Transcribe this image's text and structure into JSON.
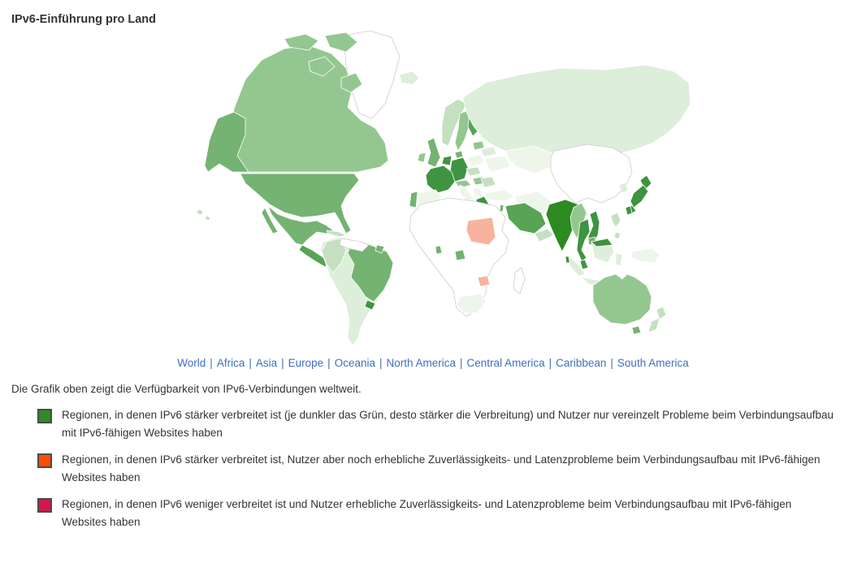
{
  "page": {
    "title": "IPv6-Einführung pro Land",
    "intro": "Die Grafik oben zeigt die Verfügbarkeit von IPv6-Verbindungen weltweit."
  },
  "nav": {
    "separator": "|",
    "link_color": "#3e6fc0",
    "links": [
      "World",
      "Africa",
      "Asia",
      "Europe",
      "Oceania",
      "North America",
      "Central America",
      "Caribbean",
      "South America"
    ]
  },
  "legend": {
    "swatch_border": "#4a4a4a",
    "items": [
      {
        "color": "#2e8b22",
        "text": "Regionen, in denen IPv6 stärker verbreitet ist (je dunkler das Grün, desto stärker die Verbreitung) und Nutzer nur vereinzelt Probleme beim Verbindungsaufbau mit IPv6-fähigen Websites haben"
      },
      {
        "color": "#ff4e02",
        "text": "Regionen, in denen IPv6 stärker verbreitet ist, Nutzer aber noch erhebliche Zuverlässigkeits- und Latenzprobleme beim Verbindungsaufbau mit IPv6-fähigen Websites haben"
      },
      {
        "color": "#d2184a",
        "text": "Regionen, in denen IPv6 weniger verbreitet ist und Nutzer erhebliche Zuverlässigkeits- und Latenzprobleme beim Verbindungsaufbau mit IPv6-fähigen Websites haben"
      }
    ]
  },
  "map": {
    "ocean": "#ffffff",
    "border": "#cccccc",
    "palette": {
      "none": "#ffffff",
      "g1": "#eef6ec",
      "g2": "#ddeeda",
      "g3": "#c4e0c0",
      "g4": "#94c790",
      "g5": "#74b371",
      "g6": "#57a455",
      "g7": "#3e9440",
      "g8": "#2c8a21",
      "salmon": "#f9b29e"
    },
    "regions": {
      "greenland": "none",
      "iceland": "g2",
      "canada": "g4",
      "alaska": "g5",
      "usa": "g5",
      "mexico": "g5",
      "central-america": "g6",
      "cuba": "g3",
      "hispaniola": "g5",
      "hawaii": "g3",
      "colombia-peru": "g3",
      "venezuela": "none",
      "french-guiana": "g5",
      "brazil": "g5",
      "uruguay": "g7",
      "southern-cone": "g2",
      "uk": "g5",
      "ireland": "g4",
      "portugal": "g5",
      "spain": "g1",
      "france": "g7",
      "benelux": "g7",
      "germany": "g7",
      "alps": "g4",
      "czech-slovakia": "g3",
      "poland": "g1",
      "hungary": "g4",
      "romania": "g3",
      "balkans": "g1",
      "greece": "g7",
      "italy": "g1",
      "denmark": "g5",
      "norway": "g3",
      "sweden": "g4",
      "finland": "g6",
      "baltics": "g4",
      "belarus": "g2",
      "ukraine": "g1",
      "russia": "g2",
      "central-asia": "g1",
      "turkey": "g1",
      "middle-east": "g1",
      "saudi-arabia": "g6",
      "yemen-oman": "g3",
      "israel": "g5",
      "africa": "none",
      "sudan": "salmon",
      "gabon": "g5",
      "ghana": "g5",
      "zimbabwe": "salmon",
      "south-africa": "g1",
      "madagascar": "none",
      "china": "none",
      "korea": "g2",
      "japan": "g7",
      "taiwan": "g7",
      "india": "g8",
      "sri-lanka": "g7",
      "bangladesh": "g2",
      "myanmar": "g4",
      "thailand": "g7",
      "vietnam": "g7",
      "cambodia": "g5",
      "malaysia": "g7",
      "indonesia": "g2",
      "philippines": "g3",
      "new-guinea": "g1",
      "australia": "g4",
      "tasmania": "g5",
      "new-zealand": "g3"
    }
  }
}
